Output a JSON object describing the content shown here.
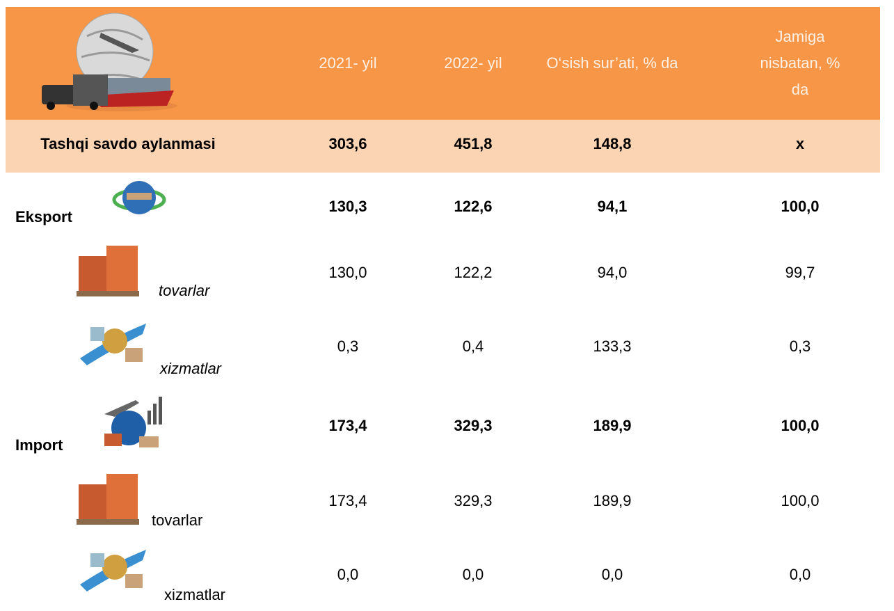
{
  "header": {
    "columns": [
      "2021- yil",
      "2022- yil",
      "O‘sish sur’ati, % da",
      "Jamiga nisbatan, % da"
    ]
  },
  "table": {
    "rows": [
      [
        "Tashqi savdo aylanmasi",
        "303,6",
        "451,8",
        "148,8",
        "x"
      ],
      [
        "Eksport",
        "130,3",
        "122,6",
        "94,1",
        "100,0"
      ],
      [
        "tovarlar",
        "130,0",
        "122,2",
        "94,0",
        "99,7"
      ],
      [
        "xizmatlar",
        "0,3",
        "0,4",
        "133,3",
        "0,3"
      ],
      [
        "Import",
        "173,4",
        "329,3",
        "189,9",
        "100,0"
      ],
      [
        "tovarlar",
        "173,4",
        "329,3",
        "189,9",
        "100,0"
      ],
      [
        "xizmatlar",
        "0,0",
        "0,0",
        "0,0",
        "0,0"
      ]
    ]
  }
}
